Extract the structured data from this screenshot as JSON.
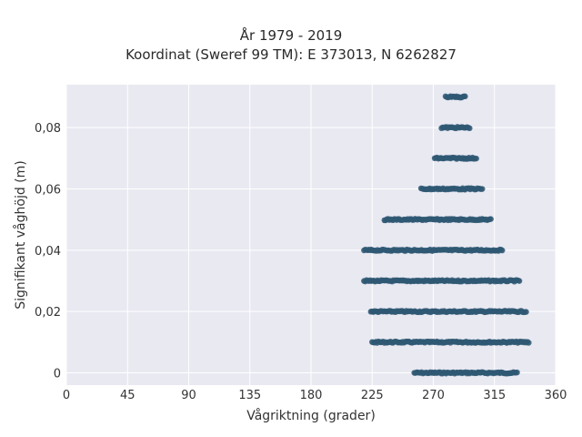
{
  "chart_data": {
    "type": "scatter",
    "title": "År 1979 - 2019",
    "subtitle": "Koordinat (Sweref 99 TM): E 373013, N 6262827",
    "xlabel": "Vågriktning (grader)",
    "ylabel": "Signifikant våghöjd (m)",
    "xlim": [
      0,
      360
    ],
    "ylim": [
      -0.004,
      0.094
    ],
    "xticks": [
      0,
      45,
      90,
      135,
      180,
      225,
      270,
      315,
      360
    ],
    "yticks": [
      0,
      0.02,
      0.04,
      0.06,
      0.08
    ],
    "ytick_labels": [
      "0",
      "0,02",
      "0,04",
      "0,06",
      "0,08"
    ],
    "grid": true,
    "background": "#e9e9f2",
    "marker_color": "#2f5873",
    "series": [
      {
        "points": [
          {
            "y": 0.0,
            "x_min": 256,
            "x_max": 332
          },
          {
            "y": 0.01,
            "x_min": 225,
            "x_max": 341
          },
          {
            "y": 0.02,
            "x_min": 224,
            "x_max": 339
          },
          {
            "y": 0.03,
            "x_min": 219,
            "x_max": 334
          },
          {
            "y": 0.04,
            "x_min": 219,
            "x_max": 321
          },
          {
            "y": 0.05,
            "x_min": 234,
            "x_max": 313
          },
          {
            "y": 0.06,
            "x_min": 261,
            "x_max": 306
          },
          {
            "y": 0.07,
            "x_min": 271,
            "x_max": 302
          },
          {
            "y": 0.08,
            "x_min": 276,
            "x_max": 297
          },
          {
            "y": 0.09,
            "x_min": 279,
            "x_max": 294
          }
        ]
      }
    ]
  }
}
